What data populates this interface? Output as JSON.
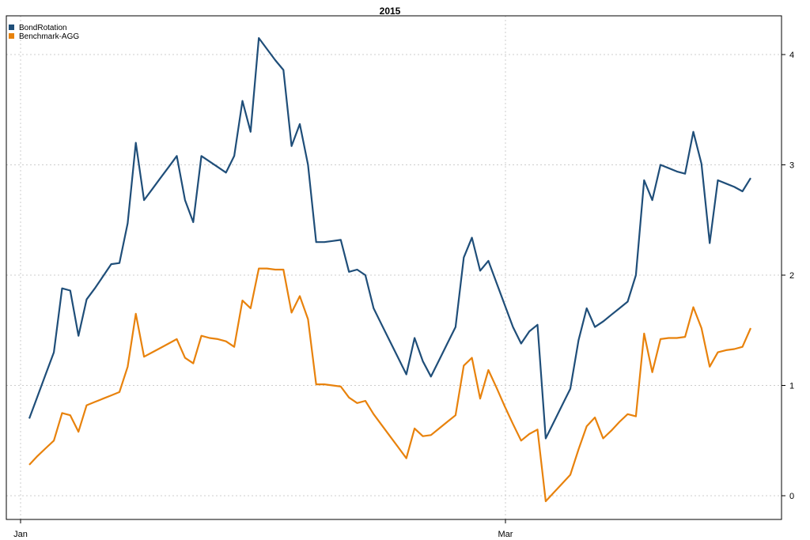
{
  "chart_data": {
    "type": "line",
    "title": "2015",
    "xlabel": "",
    "ylabel": "",
    "x_tick_labels": [
      "Jan",
      "Mar"
    ],
    "y_ticks": [
      0,
      1,
      2,
      3,
      4
    ],
    "ylim": [
      -0.1,
      4.3
    ],
    "grid": true,
    "legend_position": "top-left",
    "series": [
      {
        "name": "BondRotation",
        "color": "#1f4e79",
        "values": [
          0.7,
          0.9,
          1.1,
          1.3,
          1.88,
          1.86,
          1.45,
          1.78,
          1.88,
          1.99,
          2.1,
          2.11,
          2.47,
          3.2,
          2.68,
          2.78,
          2.88,
          2.98,
          3.08,
          2.68,
          2.48,
          3.08,
          3.03,
          2.98,
          2.93,
          3.08,
          3.58,
          3.3,
          4.15,
          4.05,
          3.95,
          3.86,
          3.17,
          3.37,
          3.0,
          2.3,
          2.3,
          2.31,
          2.32,
          2.03,
          2.05,
          2.0,
          1.7,
          1.55,
          1.4,
          1.25,
          1.1,
          1.43,
          1.22,
          1.08,
          1.23,
          1.38,
          1.53,
          2.16,
          2.34,
          2.04,
          2.13,
          1.93,
          1.73,
          1.53,
          1.38,
          1.49,
          1.55,
          0.52,
          0.67,
          0.82,
          0.97,
          1.41,
          1.7,
          1.53,
          1.58,
          1.64,
          1.7,
          1.76,
          2.0,
          2.86,
          2.68,
          3.0,
          2.97,
          2.94,
          2.92,
          3.3,
          3.01,
          2.29,
          2.86,
          2.83,
          2.8,
          2.76,
          2.88
        ]
      },
      {
        "name": "Benchmark-AGG",
        "color": "#e8820c",
        "values": [
          0.28,
          0.36,
          0.43,
          0.5,
          0.75,
          0.73,
          0.58,
          0.82,
          0.85,
          0.88,
          0.91,
          0.94,
          1.17,
          1.65,
          1.26,
          1.3,
          1.34,
          1.38,
          1.42,
          1.25,
          1.2,
          1.45,
          1.43,
          1.42,
          1.4,
          1.35,
          1.77,
          1.7,
          2.06,
          2.06,
          2.05,
          2.05,
          1.66,
          1.81,
          1.6,
          1.01,
          1.01,
          1.0,
          0.99,
          0.89,
          0.84,
          0.86,
          0.74,
          0.64,
          0.54,
          0.44,
          0.34,
          0.61,
          0.54,
          0.55,
          0.61,
          0.67,
          0.73,
          1.18,
          1.25,
          0.88,
          1.14,
          0.98,
          0.81,
          0.65,
          0.5,
          0.56,
          0.6,
          -0.05,
          0.03,
          0.11,
          0.19,
          0.42,
          0.63,
          0.71,
          0.52,
          0.59,
          0.67,
          0.74,
          0.72,
          1.47,
          1.12,
          1.42,
          1.43,
          1.43,
          1.44,
          1.71,
          1.52,
          1.17,
          1.3,
          1.32,
          1.33,
          1.35,
          1.52
        ]
      }
    ]
  }
}
